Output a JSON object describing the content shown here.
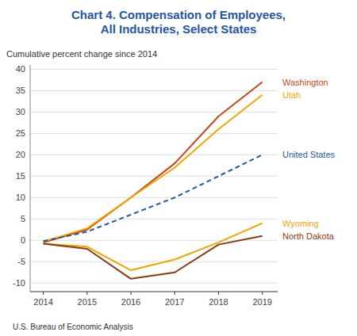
{
  "chart_data": {
    "type": "line",
    "title": "Chart 4. Compensation of Employees,\nAll Industries, Select States",
    "title_color": "#2456a4",
    "y_label": "Cumulative percent change since 2014",
    "source": "U.S. Bureau of Economic Analysis",
    "x": [
      2014,
      2015,
      2016,
      2017,
      2018,
      2019
    ],
    "xlim": [
      2013.7,
      2019.35
    ],
    "xticks": [
      2014,
      2015,
      2016,
      2017,
      2018,
      2019
    ],
    "ylim": [
      -12,
      41
    ],
    "yticks": [
      -10,
      -5,
      0,
      5,
      10,
      15,
      20,
      25,
      30,
      35,
      40
    ],
    "grid": true,
    "series": [
      {
        "name": "Washington",
        "color": "#c8451a",
        "line_style": "solid",
        "values": [
          -0.5,
          2.5,
          10,
          18,
          29,
          37
        ]
      },
      {
        "name": "Utah",
        "color": "#f0a500",
        "line_style": "solid",
        "values": [
          -0.3,
          2.8,
          10,
          17,
          26,
          34
        ]
      },
      {
        "name": "United States",
        "color": "#2456a4",
        "line_style": "dashed",
        "values": [
          -0.2,
          2,
          6,
          10,
          15,
          20
        ]
      },
      {
        "name": "Wyoming",
        "color": "#f0a500",
        "line_style": "solid",
        "values": [
          -0.8,
          -1.5,
          -7,
          -4.5,
          -0.5,
          4
        ]
      },
      {
        "name": "North Dakota",
        "color": "#8b3a10",
        "line_style": "solid",
        "values": [
          -0.8,
          -2,
          -9,
          -7.5,
          -1,
          1
        ]
      }
    ]
  }
}
